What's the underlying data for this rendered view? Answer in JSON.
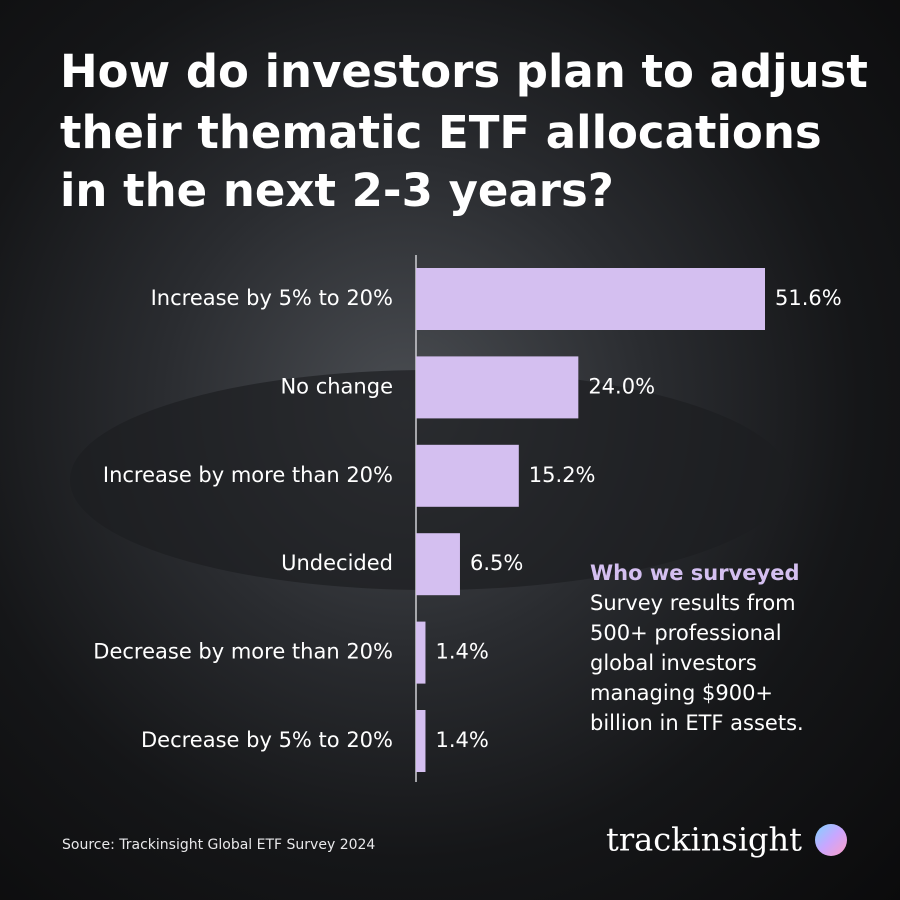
{
  "chart_data": {
    "type": "hbar",
    "title": [
      "How do investors plan to adjust",
      "their thematic ETF allocations",
      "in the next 2-3 years?"
    ],
    "categories": [
      "Increase by 5% to 20%",
      "No change",
      "Increase by more than 20%",
      "Undecided",
      "Decrease by more than 20%",
      "Decrease by 5% to 20%"
    ],
    "values": [
      51.6,
      24.0,
      15.2,
      6.5,
      1.4,
      1.4
    ],
    "value_labels": [
      "51.6%",
      "24.0%",
      "15.2%",
      "6.5%",
      "1.4%",
      "1.4%"
    ],
    "color": "#d4bff0",
    "annotation": {
      "heading": "Who we surveyed",
      "lines": [
        "Survey results from",
        "500+ professional",
        "global investors",
        "managing $900+",
        "billion in ETF assets."
      ]
    },
    "source": "Source: Trackinsight Global ETF Survey 2024",
    "brand": "trackinsight"
  }
}
